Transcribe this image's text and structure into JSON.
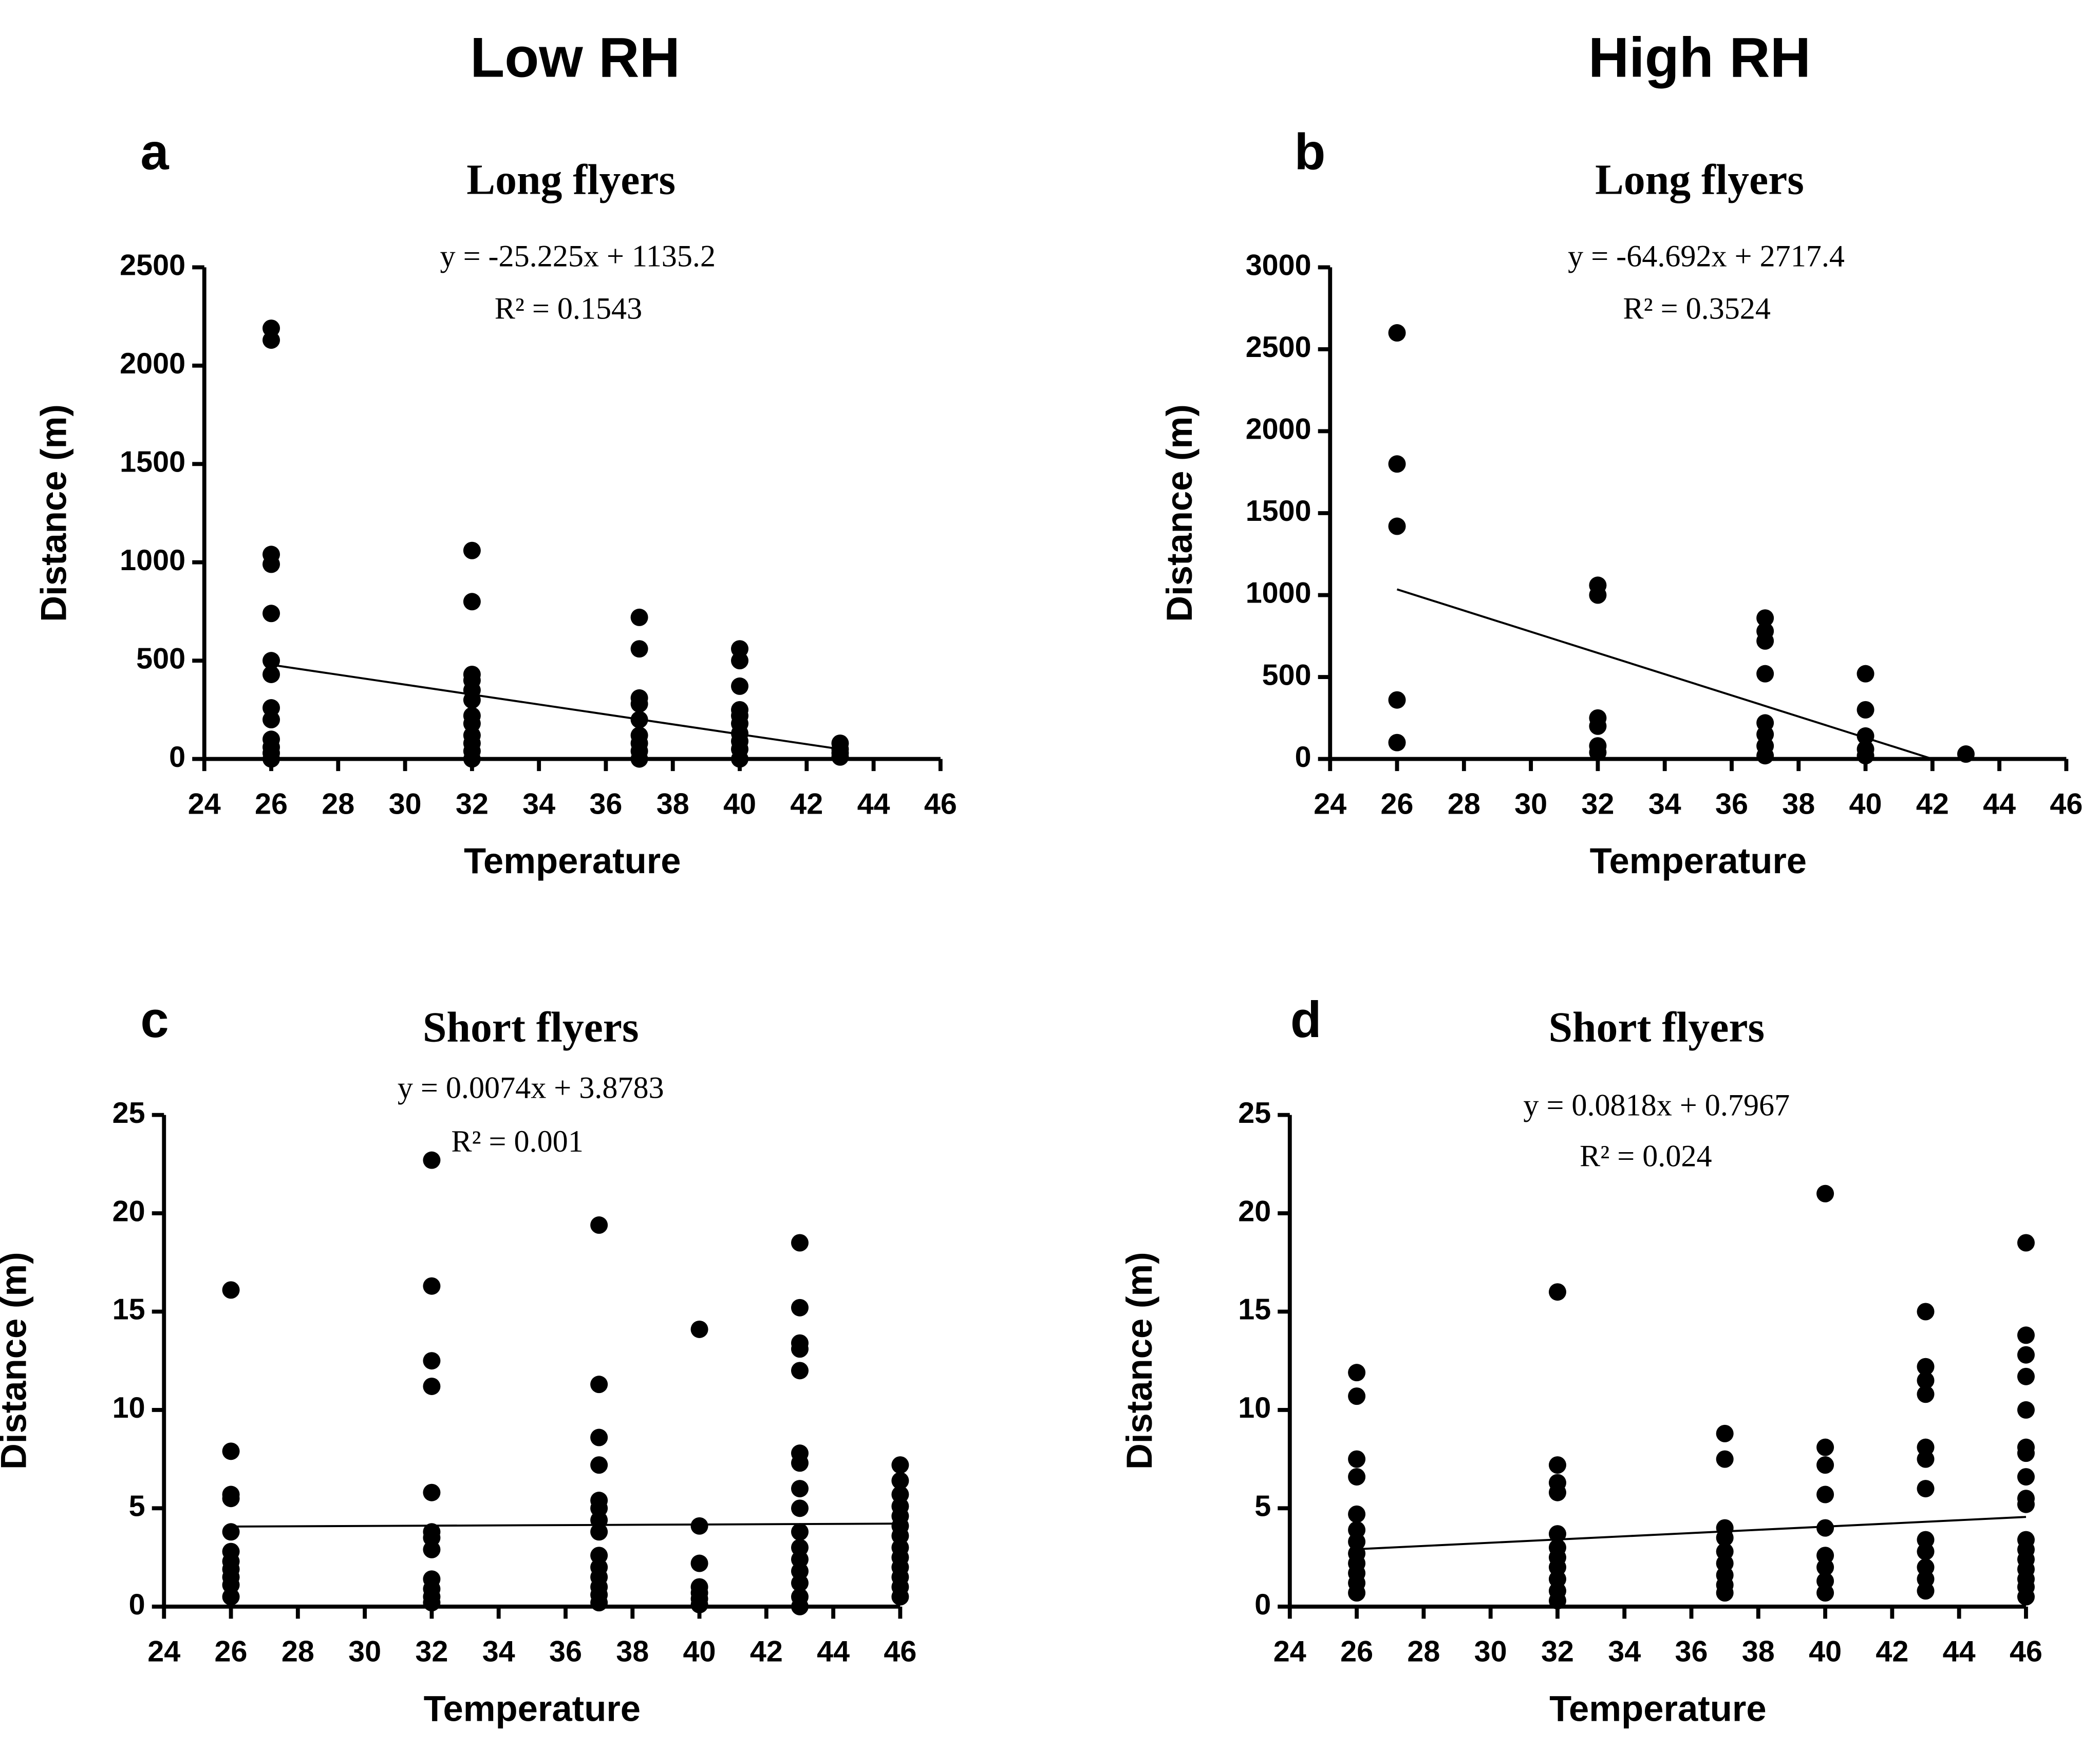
{
  "column_titles": [
    "Low RH",
    "High RH"
  ],
  "chart_data": [
    {
      "type": "scatter",
      "panel": "a",
      "title": "Long flyers",
      "annotations": [
        "y = -25.225x + 1135.2",
        "R² = 0.1543"
      ],
      "xlabel": "Temperature",
      "ylabel": "Distance (m)",
      "color": "#000000",
      "xlim": [
        24,
        46
      ],
      "xticks": [
        24,
        26,
        28,
        30,
        32,
        34,
        36,
        38,
        40,
        42,
        44,
        46
      ],
      "ylim": [
        0,
        2500
      ],
      "yticks": [
        0,
        500,
        1000,
        1500,
        2000,
        2500
      ],
      "x": [
        26,
        26,
        26,
        26,
        26,
        26,
        26,
        26,
        26,
        26,
        26,
        26,
        26,
        32,
        32,
        32,
        32,
        32,
        32,
        32,
        32,
        32,
        32,
        32,
        32,
        37,
        37,
        37,
        37,
        37,
        37,
        37,
        37,
        37,
        40,
        40,
        40,
        40,
        40,
        40,
        40,
        40,
        40,
        40,
        43,
        43,
        43,
        43
      ],
      "values": [
        2190,
        2130,
        1040,
        990,
        740,
        500,
        430,
        260,
        200,
        100,
        60,
        30,
        0,
        1060,
        800,
        430,
        400,
        350,
        300,
        220,
        180,
        120,
        80,
        40,
        0,
        720,
        560,
        310,
        280,
        200,
        120,
        80,
        40,
        0,
        560,
        500,
        370,
        250,
        220,
        180,
        130,
        90,
        50,
        0,
        80,
        50,
        30,
        10
      ],
      "fit": {
        "x": [
          26,
          43
        ],
        "y": [
          479,
          50
        ]
      }
    },
    {
      "type": "scatter",
      "panel": "b",
      "title": "Long flyers",
      "annotations": [
        "y = -64.692x + 2717.4",
        "R² = 0.3524"
      ],
      "xlabel": "Temperature",
      "ylabel": "Distance (m)",
      "color": "#000000",
      "xlim": [
        24,
        46
      ],
      "xticks": [
        24,
        26,
        28,
        30,
        32,
        34,
        36,
        38,
        40,
        42,
        44,
        46
      ],
      "ylim": [
        0,
        3000
      ],
      "yticks": [
        0,
        500,
        1000,
        1500,
        2000,
        2500,
        3000
      ],
      "x": [
        26,
        26,
        26,
        26,
        26,
        32,
        32,
        32,
        32,
        32,
        32,
        37,
        37,
        37,
        37,
        37,
        37,
        37,
        37,
        40,
        40,
        40,
        40,
        40,
        43
      ],
      "values": [
        2600,
        1800,
        1420,
        360,
        100,
        1060,
        1000,
        250,
        200,
        80,
        40,
        860,
        780,
        720,
        520,
        220,
        150,
        80,
        20,
        520,
        300,
        140,
        60,
        20,
        30
      ],
      "fit": {
        "x": [
          26,
          42
        ],
        "y": [
          1035,
          0
        ]
      }
    },
    {
      "type": "scatter",
      "panel": "c",
      "title": "Short flyers",
      "annotations": [
        "y = 0.0074x + 3.8783",
        "R² = 0.001"
      ],
      "xlabel": "Temperature",
      "ylabel": "Distance (m)",
      "color": "#000000",
      "xlim": [
        24,
        46
      ],
      "xticks": [
        24,
        26,
        28,
        30,
        32,
        34,
        36,
        38,
        40,
        42,
        44,
        46
      ],
      "ylim": [
        0,
        25
      ],
      "yticks": [
        0,
        5,
        10,
        15,
        20,
        25
      ],
      "x": [
        26,
        26,
        26,
        26,
        26,
        26,
        26,
        26,
        26,
        26,
        26,
        32,
        32,
        32,
        32,
        32,
        32,
        32,
        32,
        32,
        32,
        32,
        32,
        37,
        37,
        37,
        37,
        37,
        37,
        37,
        37,
        37,
        37,
        37,
        37,
        37,
        37,
        40,
        40,
        40,
        40,
        40,
        40,
        40,
        43,
        43,
        43,
        43,
        43,
        43,
        43,
        43,
        43,
        43,
        43,
        43,
        43,
        43,
        43,
        43,
        46,
        46,
        46,
        46,
        46,
        46,
        46,
        46,
        46,
        46,
        46,
        46,
        46
      ],
      "values": [
        16.1,
        7.9,
        5.7,
        5.5,
        3.8,
        2.8,
        2.3,
        1.9,
        1.5,
        1.1,
        0.5,
        22.7,
        16.3,
        12.5,
        11.2,
        5.8,
        3.8,
        3.5,
        2.9,
        1.4,
        0.9,
        0.5,
        0.2,
        19.4,
        11.3,
        8.6,
        7.2,
        5.4,
        5.0,
        4.4,
        3.8,
        2.6,
        2.0,
        1.5,
        1.0,
        0.6,
        0.2,
        14.1,
        4.1,
        2.2,
        1.0,
        0.7,
        0.4,
        0.1,
        18.5,
        15.2,
        13.4,
        13.1,
        12.0,
        7.8,
        7.3,
        6.0,
        5.0,
        3.8,
        3.0,
        2.4,
        1.8,
        1.2,
        0.5,
        0.0,
        7.2,
        6.4,
        5.7,
        5.1,
        4.6,
        4.1,
        3.6,
        3.0,
        2.5,
        2.0,
        1.5,
        1.0,
        0.5
      ],
      "fit": {
        "x": [
          26,
          46
        ],
        "y": [
          4.07,
          4.22
        ]
      }
    },
    {
      "type": "scatter",
      "panel": "d",
      "title": "Short flyers",
      "annotations": [
        "y = 0.0818x + 0.7967",
        "R² = 0.024"
      ],
      "xlabel": "Temperature",
      "ylabel": "Distance (m)",
      "color": "#000000",
      "xlim": [
        24,
        46
      ],
      "xticks": [
        24,
        26,
        28,
        30,
        32,
        34,
        36,
        38,
        40,
        42,
        44,
        46
      ],
      "ylim": [
        0,
        25
      ],
      "yticks": [
        0,
        5,
        10,
        15,
        20,
        25
      ],
      "x": [
        26,
        26,
        26,
        26,
        26,
        26,
        26,
        26,
        26,
        26,
        26,
        26,
        32,
        32,
        32,
        32,
        32,
        32,
        32,
        32,
        32,
        32,
        32,
        37,
        37,
        37,
        37,
        37,
        37,
        37,
        37,
        37,
        40,
        40,
        40,
        40,
        40,
        40,
        40,
        40,
        40,
        43,
        43,
        43,
        43,
        43,
        43,
        43,
        43,
        43,
        43,
        43,
        43,
        46,
        46,
        46,
        46,
        46,
        46,
        46,
        46,
        46,
        46,
        46,
        46,
        46,
        46,
        46,
        46,
        46
      ],
      "values": [
        11.9,
        10.7,
        7.5,
        6.6,
        4.7,
        3.9,
        3.3,
        2.7,
        2.2,
        1.7,
        1.2,
        0.7,
        16.0,
        7.2,
        6.3,
        5.8,
        3.7,
        3.0,
        2.5,
        2.0,
        1.4,
        0.8,
        0.3,
        8.8,
        7.5,
        4.0,
        3.5,
        2.8,
        2.2,
        1.6,
        1.1,
        0.7,
        21.0,
        8.1,
        7.2,
        5.7,
        4.0,
        2.6,
        2.0,
        1.3,
        0.7,
        15.0,
        12.2,
        11.5,
        10.8,
        8.1,
        7.5,
        6.0,
        3.4,
        2.8,
        2.0,
        1.4,
        0.8,
        18.5,
        13.8,
        12.8,
        11.7,
        10.0,
        8.1,
        7.8,
        6.6,
        5.5,
        5.2,
        3.4,
        2.9,
        2.4,
        1.9,
        1.4,
        1.0,
        0.5
      ],
      "fit": {
        "x": [
          26,
          46
        ],
        "y": [
          2.92,
          4.56
        ]
      }
    }
  ]
}
